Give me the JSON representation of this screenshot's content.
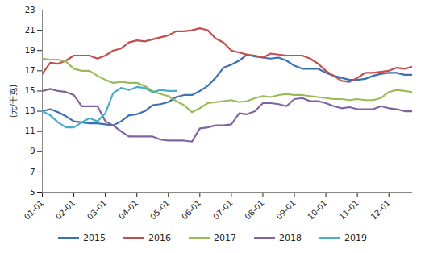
{
  "chart_data": {
    "type": "line",
    "ylabel": "(元/千克)",
    "categories": [
      "01-01",
      null,
      null,
      null,
      "02-01",
      null,
      null,
      null,
      "03-01",
      null,
      null,
      null,
      "04-01",
      null,
      null,
      null,
      "05-01",
      null,
      null,
      null,
      "06-01",
      null,
      null,
      null,
      "07-01",
      null,
      null,
      null,
      "08-01",
      null,
      null,
      null,
      "09-01",
      null,
      null,
      null,
      "10-01",
      null,
      null,
      null,
      "11-01",
      null,
      null,
      null,
      "12-01",
      null,
      null,
      null
    ],
    "series": [
      {
        "name": "2015",
        "color": "#3b6fb6",
        "values": [
          13.0,
          13.2,
          12.9,
          12.5,
          12.0,
          11.9,
          11.8,
          11.8,
          11.7,
          11.6,
          12.0,
          12.6,
          12.7,
          13.0,
          13.6,
          13.7,
          13.9,
          14.4,
          14.6,
          14.6,
          15.0,
          15.5,
          16.3,
          17.3,
          17.6,
          18.0,
          18.6,
          18.4,
          18.3,
          18.2,
          18.3,
          18.0,
          17.5,
          17.2,
          17.2,
          17.2,
          16.8,
          16.5,
          16.3,
          16.1,
          16.1,
          16.2,
          16.5,
          16.7,
          16.8,
          16.8,
          16.6,
          16.6
        ]
      },
      {
        "name": "2016",
        "color": "#c0504d",
        "values": [
          16.7,
          17.8,
          17.7,
          18.0,
          18.5,
          18.5,
          18.5,
          18.2,
          18.5,
          19.0,
          19.2,
          19.8,
          20.0,
          19.9,
          20.1,
          20.3,
          20.5,
          20.9,
          20.9,
          21.0,
          21.2,
          21.0,
          20.2,
          19.8,
          19.0,
          18.8,
          18.6,
          18.5,
          18.3,
          18.7,
          18.6,
          18.5,
          18.5,
          18.5,
          18.2,
          17.7,
          17.0,
          16.5,
          16.0,
          15.9,
          16.3,
          16.8,
          16.8,
          16.9,
          17.0,
          17.3,
          17.2,
          17.4
        ]
      },
      {
        "name": "2017",
        "color": "#9bbb59",
        "values": [
          18.2,
          18.1,
          18.1,
          17.9,
          17.2,
          17.0,
          17.0,
          16.5,
          16.1,
          15.8,
          15.9,
          15.8,
          15.8,
          15.5,
          15.0,
          14.7,
          14.5,
          14.0,
          13.6,
          12.9,
          13.3,
          13.8,
          13.9,
          14.0,
          14.1,
          13.9,
          14.0,
          14.3,
          14.5,
          14.4,
          14.6,
          14.7,
          14.6,
          14.6,
          14.5,
          14.4,
          14.3,
          14.2,
          14.2,
          14.1,
          14.2,
          14.1,
          14.1,
          14.3,
          14.9,
          15.1,
          15.0,
          14.9
        ]
      },
      {
        "name": "2018",
        "color": "#8064a2",
        "values": [
          15.0,
          15.2,
          15.0,
          14.9,
          14.6,
          13.5,
          13.5,
          13.5,
          12.0,
          11.6,
          11.0,
          10.5,
          10.5,
          10.5,
          10.5,
          10.2,
          10.1,
          10.1,
          10.1,
          10.0,
          11.3,
          11.4,
          11.6,
          11.6,
          11.7,
          12.8,
          12.7,
          13.0,
          13.8,
          13.8,
          13.7,
          13.5,
          14.2,
          14.3,
          14.0,
          14.0,
          13.8,
          13.5,
          13.3,
          13.4,
          13.2,
          13.2,
          13.2,
          13.5,
          13.3,
          13.2,
          13.0,
          13.0
        ]
      },
      {
        "name": "2019",
        "color": "#4bacc6",
        "values": [
          13.0,
          12.6,
          11.9,
          11.4,
          11.4,
          11.9,
          12.3,
          12.0,
          12.8,
          14.8,
          15.3,
          15.1,
          15.4,
          15.3,
          14.9,
          15.1,
          15.0,
          15.0,
          null,
          null,
          null,
          null,
          null,
          null,
          null,
          null,
          null,
          null,
          null,
          null,
          null,
          null,
          null,
          null,
          null,
          null,
          null,
          null,
          null,
          null,
          null,
          null,
          null,
          null,
          null,
          null,
          null,
          null
        ]
      }
    ],
    "ylim": [
      5,
      23
    ],
    "yticks": [
      5,
      7,
      9,
      11,
      13,
      15,
      17,
      19,
      21,
      23
    ],
    "grid": false,
    "legend": "bottom"
  }
}
